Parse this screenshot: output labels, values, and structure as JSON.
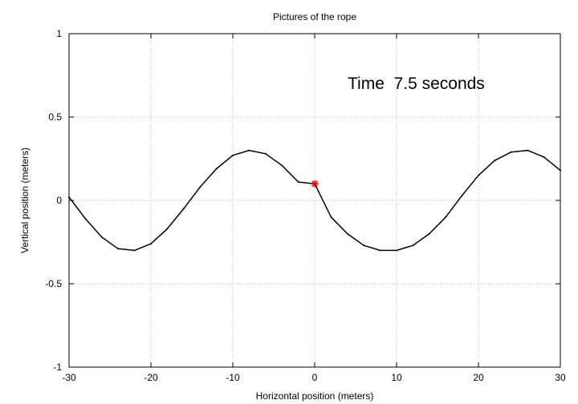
{
  "chart_data": {
    "type": "line",
    "title": "Pictures of the rope",
    "xlabel": "Horizontal position (meters)",
    "ylabel": "Vertical position (meters)",
    "xlim": [
      -30,
      30
    ],
    "ylim": [
      -1,
      1
    ],
    "grid": true,
    "x_ticks": [
      "-30",
      "-20",
      "-10",
      "0",
      "10",
      "20",
      "30"
    ],
    "y_ticks": [
      "1",
      "0.5",
      "0",
      "-0.5",
      "-1"
    ],
    "annotation": "Time  7.5 seconds",
    "series": [
      {
        "color": "#000000",
        "x": [
          -30,
          -28,
          -26,
          -24,
          -22,
          -20,
          -18,
          -16,
          -14,
          -12,
          -10,
          -8,
          -6,
          -4,
          -2,
          0,
          2,
          4,
          6,
          8,
          10,
          12,
          14,
          16,
          18,
          20,
          22,
          24,
          26,
          28,
          30
        ],
        "y": [
          0.02,
          -0.11,
          -0.22,
          -0.29,
          -0.3,
          -0.26,
          -0.17,
          -0.05,
          0.08,
          0.19,
          0.27,
          0.3,
          0.28,
          0.21,
          0.11,
          0.1,
          -0.1,
          -0.2,
          -0.27,
          -0.3,
          -0.3,
          -0.27,
          -0.2,
          -0.1,
          0.03,
          0.15,
          0.24,
          0.29,
          0.3,
          0.26,
          0.18
        ]
      }
    ],
    "marker": {
      "x": [
        0
      ],
      "y": [
        0.1
      ],
      "symbol": "asterisk",
      "color": "#ff0000"
    }
  }
}
